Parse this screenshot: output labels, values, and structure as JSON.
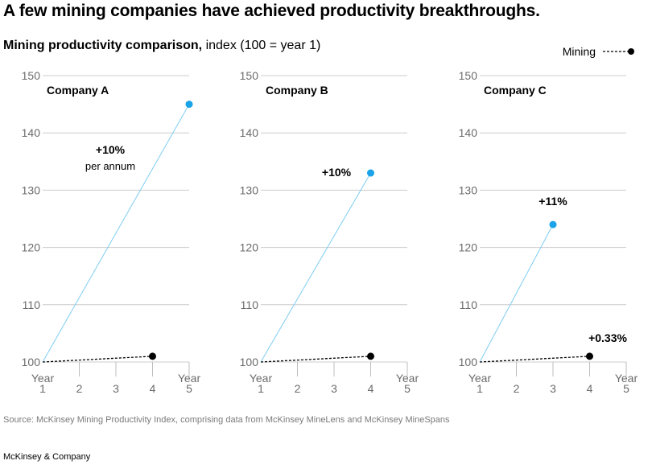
{
  "headline": "A few mining companies have achieved productivity breakthroughs.",
  "subtitle": {
    "bold": "Mining productivity comparison,",
    "rest": " index (100 = year 1)"
  },
  "legend": {
    "label": "Mining"
  },
  "colors": {
    "company": "#1aa3e8",
    "company_line": "#7fcdf0",
    "mining": "#000000",
    "grid": "#cccccc",
    "tick_text": "#6b6b6b"
  },
  "chart_data": [
    {
      "type": "line",
      "title": "Company A",
      "xlabel": "Year",
      "x_ticks": [
        1,
        2,
        3,
        4,
        5
      ],
      "ylim": [
        100,
        150
      ],
      "y_ticks": [
        100,
        110,
        120,
        130,
        140,
        150
      ],
      "grid": true,
      "series": [
        {
          "x": [
            1,
            5
          ],
          "y": [
            100,
            145
          ]
        },
        {
          "name": "Mining",
          "x": [
            1,
            4
          ],
          "y": [
            100,
            101
          ]
        }
      ],
      "annotations": [
        {
          "text": "+10%",
          "sub": "per annum"
        }
      ]
    },
    {
      "type": "line",
      "title": "Company B",
      "xlabel": "Year",
      "x_ticks": [
        1,
        2,
        3,
        4,
        5
      ],
      "ylim": [
        100,
        150
      ],
      "y_ticks": [
        100,
        110,
        120,
        130,
        140,
        150
      ],
      "grid": true,
      "series": [
        {
          "x": [
            1,
            4
          ],
          "y": [
            100,
            133
          ]
        },
        {
          "name": "Mining",
          "x": [
            1,
            4
          ],
          "y": [
            100,
            101
          ]
        }
      ],
      "annotations": [
        {
          "text": "+10%"
        }
      ]
    },
    {
      "type": "line",
      "title": "Company C",
      "xlabel": "Year",
      "x_ticks": [
        1,
        2,
        3,
        4,
        5
      ],
      "ylim": [
        100,
        150
      ],
      "y_ticks": [
        100,
        110,
        120,
        130,
        140,
        150
      ],
      "grid": true,
      "series": [
        {
          "x": [
            1,
            3
          ],
          "y": [
            100,
            124
          ]
        },
        {
          "name": "Mining",
          "x": [
            1,
            4
          ],
          "y": [
            100,
            101
          ]
        }
      ],
      "annotations": [
        {
          "text": "+11%"
        },
        {
          "text": "+0.33%"
        }
      ]
    }
  ],
  "source": "Source: McKinsey Mining Productivity Index, comprising data from McKinsey MineLens and McKinsey MineSpans",
  "brand": "McKinsey & Company"
}
